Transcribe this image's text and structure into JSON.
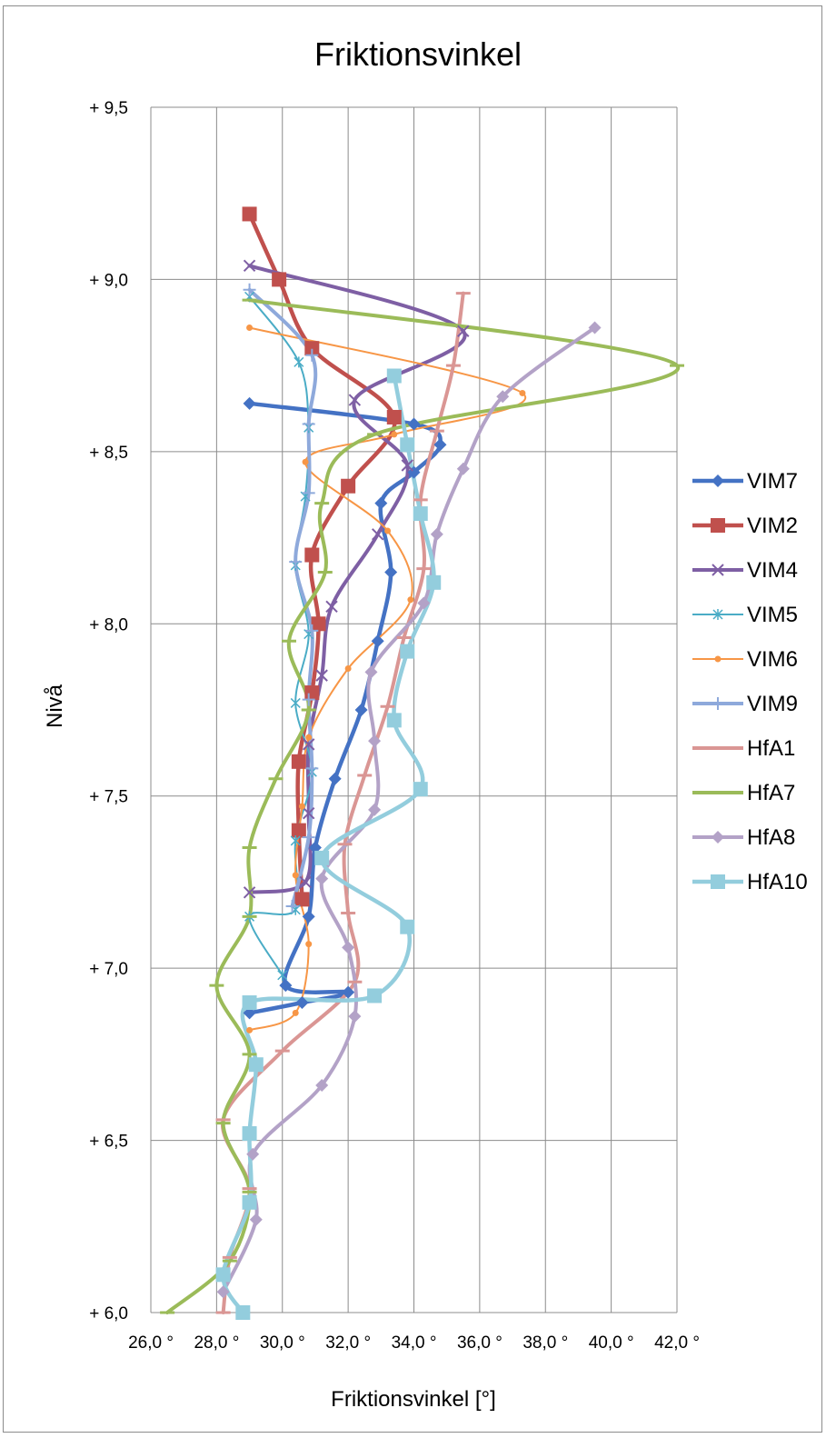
{
  "chart_data": {
    "type": "line",
    "title": "Friktionsvinkel",
    "xlabel": "Friktionsvinkel [°]",
    "ylabel": "Nivå",
    "xlim": [
      26,
      42
    ],
    "ylim": [
      6.0,
      9.5
    ],
    "x_ticks": [
      26,
      28,
      30,
      32,
      34,
      36,
      38,
      40,
      42
    ],
    "y_ticks": [
      6.0,
      6.5,
      7.0,
      7.5,
      8.0,
      8.5,
      9.0,
      9.5
    ],
    "x_tick_labels": [
      "26,0 °",
      "28,0 °",
      "30,0 °",
      "32,0 °",
      "34,0 °",
      "36,0 °",
      "38,0 °",
      "40,0 °",
      "42,0 °"
    ],
    "y_tick_labels": [
      "+ 6,0",
      "+ 6,5",
      "+ 7,0",
      "+ 7,5",
      "+ 8,0",
      "+ 8,5",
      "+ 9,0",
      "+ 9,5"
    ],
    "grid": true,
    "legend_position": "right",
    "series": [
      {
        "name": "VIM7",
        "color": "#4472c4",
        "marker": "diamond",
        "width": 4.5,
        "points": [
          [
            29.0,
            8.64
          ],
          [
            34.0,
            8.58
          ],
          [
            34.8,
            8.52
          ],
          [
            34.0,
            8.44
          ],
          [
            33.0,
            8.35
          ],
          [
            33.3,
            8.15
          ],
          [
            32.9,
            7.95
          ],
          [
            32.4,
            7.75
          ],
          [
            31.6,
            7.55
          ],
          [
            31.0,
            7.35
          ],
          [
            30.8,
            7.15
          ],
          [
            30.1,
            6.95
          ],
          [
            32.0,
            6.93
          ],
          [
            30.6,
            6.9
          ],
          [
            29.0,
            6.87
          ]
        ]
      },
      {
        "name": "VIM2",
        "color": "#c0504d",
        "marker": "square",
        "width": 4.5,
        "points": [
          [
            29.0,
            9.19
          ],
          [
            29.9,
            9.0
          ],
          [
            30.9,
            8.8
          ],
          [
            33.4,
            8.6
          ],
          [
            32.0,
            8.4
          ],
          [
            30.9,
            8.2
          ],
          [
            31.1,
            8.0
          ],
          [
            30.9,
            7.8
          ],
          [
            30.5,
            7.6
          ],
          [
            30.5,
            7.4
          ],
          [
            30.6,
            7.2
          ]
        ]
      },
      {
        "name": "VIM4",
        "color": "#7e5fa4",
        "marker": "x",
        "width": 4,
        "points": [
          [
            29.0,
            9.04
          ],
          [
            35.5,
            8.85
          ],
          [
            32.2,
            8.65
          ],
          [
            33.8,
            8.46
          ],
          [
            32.9,
            8.26
          ],
          [
            31.5,
            8.05
          ],
          [
            31.2,
            7.85
          ],
          [
            30.8,
            7.65
          ],
          [
            30.8,
            7.45
          ],
          [
            30.7,
            7.25
          ],
          [
            29.0,
            7.22
          ]
        ]
      },
      {
        "name": "VIM5",
        "color": "#4aacc6",
        "marker": "star",
        "width": 2,
        "points": [
          [
            29.0,
            8.95
          ],
          [
            30.5,
            8.76
          ],
          [
            30.8,
            8.57
          ],
          [
            30.7,
            8.37
          ],
          [
            30.4,
            8.17
          ],
          [
            30.8,
            7.97
          ],
          [
            30.4,
            7.77
          ],
          [
            30.9,
            7.57
          ],
          [
            30.4,
            7.37
          ],
          [
            30.4,
            7.17
          ],
          [
            29.0,
            7.15
          ],
          [
            30.0,
            6.98
          ]
        ]
      },
      {
        "name": "VIM6",
        "color": "#f79646",
        "marker": "circle",
        "width": 2,
        "points": [
          [
            29.0,
            8.86
          ],
          [
            37.3,
            8.67
          ],
          [
            33.4,
            8.55
          ],
          [
            30.7,
            8.47
          ],
          [
            33.2,
            8.27
          ],
          [
            33.9,
            8.07
          ],
          [
            32.0,
            7.87
          ],
          [
            30.8,
            7.67
          ],
          [
            30.6,
            7.47
          ],
          [
            30.4,
            7.27
          ],
          [
            30.8,
            7.07
          ],
          [
            30.4,
            6.87
          ],
          [
            29.0,
            6.82
          ]
        ]
      },
      {
        "name": "VIM9",
        "color": "#8ea9db",
        "marker": "plus",
        "width": 4,
        "points": [
          [
            29.0,
            8.97
          ],
          [
            30.9,
            8.78
          ],
          [
            30.8,
            8.58
          ],
          [
            30.8,
            8.38
          ],
          [
            30.4,
            8.18
          ],
          [
            30.9,
            7.98
          ],
          [
            30.8,
            7.78
          ],
          [
            30.9,
            7.58
          ],
          [
            30.8,
            7.38
          ],
          [
            30.3,
            7.18
          ]
        ]
      },
      {
        "name": "HfA1",
        "color": "#da9694",
        "marker": "dash",
        "width": 4,
        "points": [
          [
            35.5,
            8.96
          ],
          [
            35.2,
            8.75
          ],
          [
            34.7,
            8.56
          ],
          [
            34.2,
            8.36
          ],
          [
            34.3,
            8.16
          ],
          [
            33.7,
            7.96
          ],
          [
            33.2,
            7.76
          ],
          [
            32.5,
            7.56
          ],
          [
            31.9,
            7.36
          ],
          [
            32.0,
            7.16
          ],
          [
            32.2,
            6.96
          ],
          [
            30.0,
            6.76
          ],
          [
            28.2,
            6.56
          ],
          [
            29.0,
            6.36
          ],
          [
            28.4,
            6.16
          ],
          [
            28.2,
            6.0
          ]
        ]
      },
      {
        "name": "HfA7",
        "color": "#9bbb59",
        "marker": "dash",
        "width": 4,
        "points": [
          [
            29.0,
            8.94
          ],
          [
            42.0,
            8.75
          ],
          [
            32.8,
            8.55
          ],
          [
            31.2,
            8.35
          ],
          [
            31.3,
            8.15
          ],
          [
            30.2,
            7.95
          ],
          [
            30.8,
            7.75
          ],
          [
            29.8,
            7.55
          ],
          [
            29.0,
            7.35
          ],
          [
            29.0,
            7.15
          ],
          [
            28.0,
            6.95
          ],
          [
            29.0,
            6.75
          ],
          [
            28.2,
            6.55
          ],
          [
            29.0,
            6.35
          ],
          [
            28.4,
            6.15
          ],
          [
            26.5,
            6.0
          ]
        ]
      },
      {
        "name": "HfA8",
        "color": "#b3a2c7",
        "marker": "diamond",
        "width": 4,
        "points": [
          [
            39.5,
            8.86
          ],
          [
            36.7,
            8.66
          ],
          [
            35.5,
            8.45
          ],
          [
            34.7,
            8.26
          ],
          [
            34.3,
            8.06
          ],
          [
            32.7,
            7.86
          ],
          [
            32.8,
            7.66
          ],
          [
            32.8,
            7.46
          ],
          [
            31.2,
            7.26
          ],
          [
            32.0,
            7.06
          ],
          [
            32.2,
            6.86
          ],
          [
            31.2,
            6.66
          ],
          [
            29.1,
            6.46
          ],
          [
            29.2,
            6.27
          ],
          [
            28.2,
            6.06
          ]
        ]
      },
      {
        "name": "HfA10",
        "color": "#93cddd",
        "marker": "square",
        "width": 4.5,
        "points": [
          [
            33.4,
            8.72
          ],
          [
            33.8,
            8.52
          ],
          [
            34.2,
            8.32
          ],
          [
            34.6,
            8.12
          ],
          [
            33.8,
            7.92
          ],
          [
            33.4,
            7.72
          ],
          [
            34.2,
            7.52
          ],
          [
            31.2,
            7.32
          ],
          [
            33.8,
            7.12
          ],
          [
            32.8,
            6.92
          ],
          [
            29.0,
            6.9
          ],
          [
            29.2,
            6.72
          ],
          [
            29.0,
            6.52
          ],
          [
            29.0,
            6.32
          ],
          [
            28.2,
            6.11
          ],
          [
            28.8,
            6.0
          ]
        ]
      }
    ]
  }
}
